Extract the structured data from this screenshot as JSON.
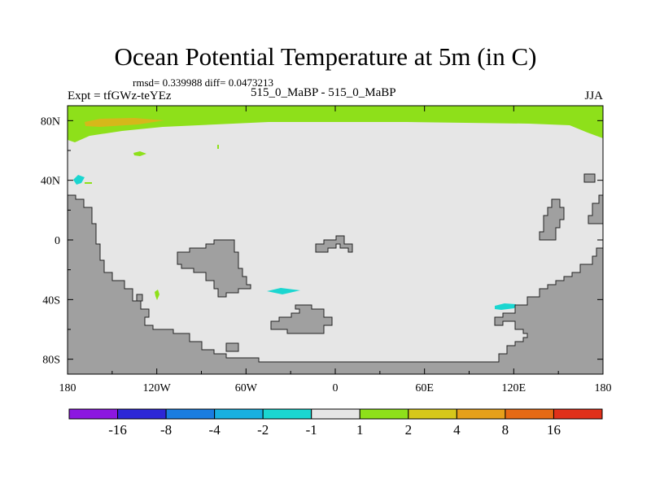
{
  "chart_data": {
    "type": "heatmap",
    "title": "Ocean Potential Temperature at 5m (in C)",
    "stats_line": "rmsd= 0.339988 diff= 0.0473213",
    "left_label": "Expt = tfGWz-teYEz",
    "center_label": "515_0_MaBP - 515_0_MaBP",
    "right_label": "JJA",
    "xlim": [
      -180,
      180
    ],
    "ylim": [
      -90,
      90
    ],
    "x_ticks": [
      {
        "value": -180,
        "label": "180"
      },
      {
        "value": -120,
        "label": "120W"
      },
      {
        "value": -60,
        "label": "60W"
      },
      {
        "value": 0,
        "label": "0"
      },
      {
        "value": 60,
        "label": "60E"
      },
      {
        "value": 120,
        "label": "120E"
      },
      {
        "value": 180,
        "label": "180"
      }
    ],
    "y_ticks": [
      {
        "value": 80,
        "label": "80N"
      },
      {
        "value": 40,
        "label": "40N"
      },
      {
        "value": 0,
        "label": "0"
      },
      {
        "value": -40,
        "label": "40S"
      },
      {
        "value": -80,
        "label": "80S"
      }
    ],
    "background_range": "-1 to 1",
    "colorbar": {
      "colors": [
        "#8c17e0",
        "#2d27d6",
        "#1a7de0",
        "#18b0e0",
        "#1bd6d0",
        "#e6e6e6",
        "#8ee01a",
        "#d6c81a",
        "#e6a01a",
        "#e66a14",
        "#e0301a"
      ],
      "labels": [
        "-16",
        "-8",
        "-4",
        "-2",
        "-1",
        "1",
        "2",
        "4",
        "8",
        "16"
      ]
    },
    "anomaly_regions": [
      {
        "name": "arctic-band",
        "value_range": "1 to 2",
        "lon_range": [
          -178,
          178
        ],
        "lat_range": [
          66,
          90
        ]
      },
      {
        "name": "arctic-warm-patch",
        "value_range": "2 to 4",
        "lon_range": [
          -163,
          -112
        ],
        "lat_range": [
          81,
          87
        ]
      },
      {
        "name": "north-pacific-spot",
        "value_range": "1 to 2",
        "lon_range": [
          -131,
          -123
        ],
        "lat_range": [
          57,
          60
        ]
      },
      {
        "name": "west-pacific-cold-spot",
        "value_range": "-2 to -1",
        "lon_range": [
          -178,
          -168
        ],
        "lat_range": [
          37,
          43
        ]
      },
      {
        "name": "south-pacific-spot",
        "value_range": "1 to 2",
        "lon_range": [
          -121,
          -119
        ],
        "lat_range": [
          -41,
          -34
        ]
      },
      {
        "name": "south-atlantic-cold-spot",
        "value_range": "-2 to -1",
        "lon_range": [
          -45,
          -22
        ],
        "lat_range": [
          -37,
          -34
        ]
      },
      {
        "name": "east-indian-cold-spot",
        "value_range": "-2 to -1",
        "lon_range": [
          110,
          122
        ],
        "lat_range": [
          -46,
          -42
        ]
      }
    ]
  }
}
